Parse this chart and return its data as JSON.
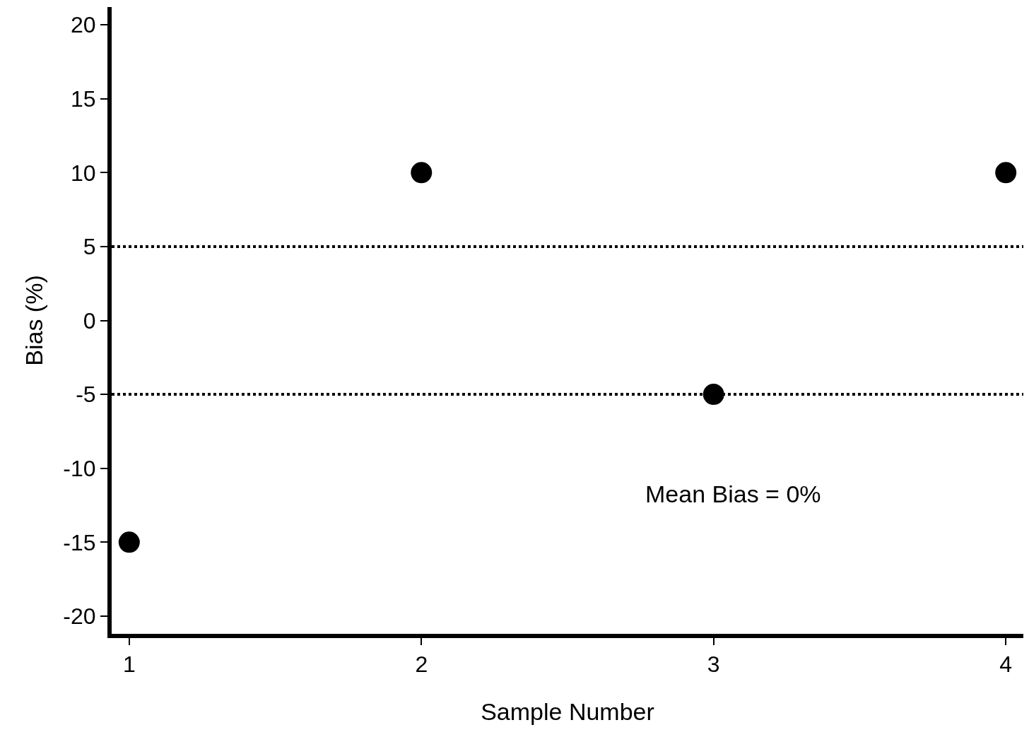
{
  "chart_data": {
    "type": "scatter",
    "xlabel": "Sample Number",
    "ylabel": "Bias (%)",
    "x": [
      1,
      2,
      3,
      4
    ],
    "values": [
      -15,
      10,
      -5,
      10
    ],
    "color": "#000000",
    "marker": "circle",
    "xlim": [
      0.94,
      4.06
    ],
    "xticks": [
      1,
      2,
      3,
      4
    ],
    "ylim": [
      -21.2,
      21.2
    ],
    "yticks": [
      -20,
      -15,
      -10,
      -5,
      0,
      5,
      10,
      15,
      20
    ],
    "grid": false,
    "ref_lines": [
      {
        "axis": "y",
        "value": 5,
        "line_style": "dotted",
        "color": "#000000"
      },
      {
        "axis": "y",
        "value": -5,
        "line_style": "dotted",
        "color": "#000000"
      }
    ],
    "annotations": [
      "Mean Bias = 0%"
    ]
  }
}
